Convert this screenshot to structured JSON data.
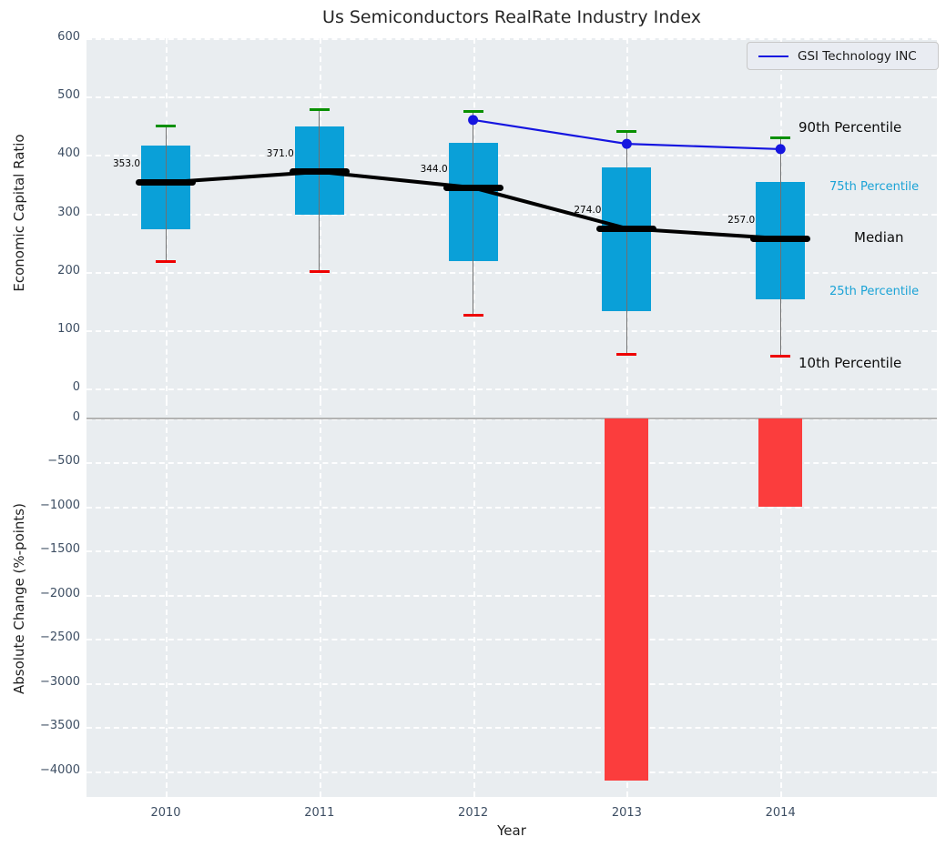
{
  "title": "Us Semiconductors RealRate Industry Index",
  "legend": {
    "label": "GSI Technology INC"
  },
  "annotations": {
    "p90": "90th Percentile",
    "p75": "75th Percentile",
    "median": "Median",
    "p25": "25th Percentile",
    "p10": "10th Percentile"
  },
  "colors": {
    "panel_bg": "#e9edf0",
    "box_fill": "#0aa0d8",
    "bar_red": "#fb3d3d",
    "cap_green": "#089000",
    "cap_red": "#ee0000",
    "gsi_blue": "#1515e0",
    "median_black": "#000000",
    "whisker_gray": "#707070",
    "zero_line": "#b3b3b3",
    "tick_label": "#3d4e63",
    "annotation_cyan": "#1ba3d6"
  },
  "chart_data": [
    {
      "type": "box-percentile",
      "title": "Us Semiconductors RealRate Industry Index",
      "ylabel": "Economic Capital Ratio",
      "ylim": [
        -20,
        620
      ],
      "yticks": [
        600,
        500,
        400,
        300,
        200,
        100,
        0
      ],
      "grid": true,
      "categories": [
        "2010",
        "2011",
        "2012",
        "2013",
        "2014"
      ],
      "series": [
        {
          "name": "90th Percentile",
          "values": [
            450,
            478,
            474,
            441,
            430
          ]
        },
        {
          "name": "75th Percentile",
          "values": [
            416,
            449,
            421,
            379,
            354
          ]
        },
        {
          "name": "Median",
          "values": [
            353,
            371,
            344,
            274,
            257
          ]
        },
        {
          "name": "25th Percentile",
          "values": [
            273,
            298,
            218,
            132,
            153
          ]
        },
        {
          "name": "10th Percentile",
          "values": [
            218,
            201,
            126,
            59,
            56
          ]
        }
      ],
      "median_labels": [
        "353.0",
        "371.0",
        "344.0",
        "274.0",
        "257.0"
      ],
      "line_series": {
        "name": "GSI Technology INC",
        "categories": [
          "2012",
          "2013",
          "2014"
        ],
        "values": [
          460,
          419,
          410
        ]
      },
      "legend_position": "upper right"
    },
    {
      "type": "bar",
      "ylabel": "Absolute Change (%-points)",
      "xlabel": "Year",
      "ylim": [
        -4290,
        200
      ],
      "yticks": [
        0,
        -500,
        -1000,
        -1500,
        -2000,
        -2500,
        -3000,
        -3500,
        -4000
      ],
      "grid": true,
      "categories": [
        "2010",
        "2011",
        "2012",
        "2013",
        "2014"
      ],
      "values": [
        null,
        null,
        null,
        -4100,
        -1000
      ]
    }
  ]
}
